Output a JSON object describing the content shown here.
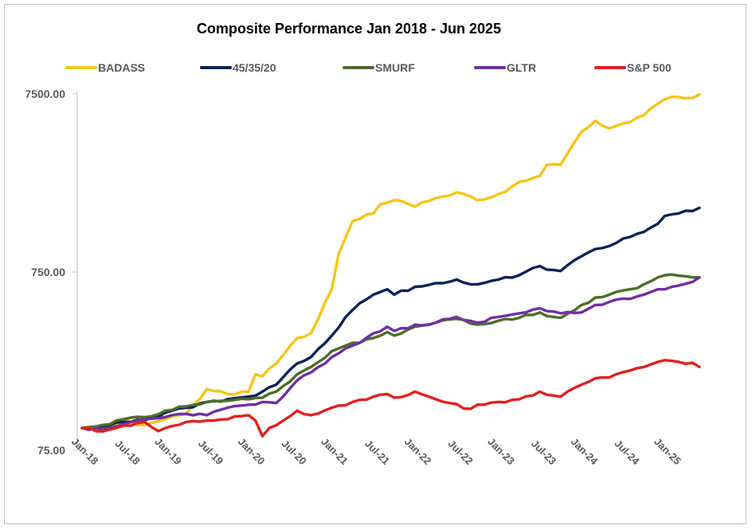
{
  "chart_data": {
    "type": "line",
    "title": "Composite Performance Jan 2018 - Jun 2025",
    "xlabel": "",
    "ylabel": "",
    "y_scale": "log",
    "ylim": [
      75,
      7500
    ],
    "y_ticks": [
      "75.00",
      "750.00",
      "7500.00"
    ],
    "x_ticks": [
      "Jan-18",
      "Jul-18",
      "Jan-19",
      "Jul-19",
      "Jan-20",
      "Jul-20",
      "Jan-21",
      "Jul-21",
      "Jan-22",
      "Jul-22",
      "Jan-23",
      "Jul-23",
      "Jan-24",
      "Jul-24",
      "Jan-25"
    ],
    "grid": false,
    "legend_position": "top",
    "x_step": "month",
    "x_start": "2018-01",
    "x_end": "2025-06",
    "series": [
      {
        "name": "BADASS",
        "color": "#F5C518",
        "points": [
          [
            "2018-01",
            100
          ],
          [
            "2018-04",
            102
          ],
          [
            "2018-07",
            110
          ],
          [
            "2018-10",
            104
          ],
          [
            "2019-01",
            112
          ],
          [
            "2019-04",
            120
          ],
          [
            "2019-07",
            165
          ],
          [
            "2019-10",
            155
          ],
          [
            "2020-01",
            160
          ],
          [
            "2020-02",
            200
          ],
          [
            "2020-03",
            195
          ],
          [
            "2020-05",
            230
          ],
          [
            "2020-08",
            320
          ],
          [
            "2020-10",
            340
          ],
          [
            "2021-01",
            600
          ],
          [
            "2021-02",
            950
          ],
          [
            "2021-04",
            1450
          ],
          [
            "2021-07",
            1600
          ],
          [
            "2021-08",
            1800
          ],
          [
            "2021-10",
            1900
          ],
          [
            "2022-01",
            1750
          ],
          [
            "2022-04",
            1950
          ],
          [
            "2022-07",
            2100
          ],
          [
            "2022-10",
            1900
          ],
          [
            "2023-01",
            2050
          ],
          [
            "2023-04",
            2400
          ],
          [
            "2023-07",
            2600
          ],
          [
            "2023-08",
            3000
          ],
          [
            "2023-10",
            3000
          ],
          [
            "2024-01",
            4600
          ],
          [
            "2024-03",
            5300
          ],
          [
            "2024-05",
            4800
          ],
          [
            "2024-08",
            5200
          ],
          [
            "2024-10",
            5700
          ],
          [
            "2024-12",
            6600
          ],
          [
            "2025-01",
            7000
          ],
          [
            "2025-03",
            7200
          ],
          [
            "2025-05",
            7100
          ],
          [
            "2025-06",
            7450
          ]
        ]
      },
      {
        "name": "45/35/20",
        "color": "#0B2256",
        "points": [
          [
            "2018-01",
            100
          ],
          [
            "2018-04",
            102
          ],
          [
            "2018-07",
            108
          ],
          [
            "2018-10",
            110
          ],
          [
            "2019-01",
            122
          ],
          [
            "2019-04",
            130
          ],
          [
            "2019-07",
            140
          ],
          [
            "2019-10",
            145
          ],
          [
            "2020-01",
            150
          ],
          [
            "2020-03",
            160
          ],
          [
            "2020-05",
            175
          ],
          [
            "2020-08",
            230
          ],
          [
            "2020-10",
            250
          ],
          [
            "2021-01",
            330
          ],
          [
            "2021-03",
            420
          ],
          [
            "2021-05",
            500
          ],
          [
            "2021-07",
            560
          ],
          [
            "2021-09",
            600
          ],
          [
            "2021-10",
            560
          ],
          [
            "2022-01",
            620
          ],
          [
            "2022-04",
            650
          ],
          [
            "2022-07",
            680
          ],
          [
            "2022-10",
            640
          ],
          [
            "2023-01",
            680
          ],
          [
            "2023-04",
            720
          ],
          [
            "2023-07",
            810
          ],
          [
            "2023-09",
            770
          ],
          [
            "2023-10",
            760
          ],
          [
            "2024-01",
            920
          ],
          [
            "2024-03",
            1010
          ],
          [
            "2024-05",
            1050
          ],
          [
            "2024-08",
            1180
          ],
          [
            "2024-10",
            1260
          ],
          [
            "2024-12",
            1400
          ],
          [
            "2025-01",
            1550
          ],
          [
            "2025-03",
            1600
          ],
          [
            "2025-05",
            1650
          ],
          [
            "2025-06",
            1720
          ]
        ]
      },
      {
        "name": "SMURF",
        "color": "#4E6D2A",
        "points": [
          [
            "2018-01",
            100
          ],
          [
            "2018-04",
            104
          ],
          [
            "2018-07",
            112
          ],
          [
            "2018-10",
            115
          ],
          [
            "2019-01",
            125
          ],
          [
            "2019-04",
            132
          ],
          [
            "2019-07",
            140
          ],
          [
            "2019-10",
            142
          ],
          [
            "2020-01",
            145
          ],
          [
            "2020-03",
            148
          ],
          [
            "2020-05",
            160
          ],
          [
            "2020-08",
            200
          ],
          [
            "2020-10",
            220
          ],
          [
            "2021-01",
            270
          ],
          [
            "2021-03",
            290
          ],
          [
            "2021-05",
            300
          ],
          [
            "2021-07",
            320
          ],
          [
            "2021-09",
            345
          ],
          [
            "2021-10",
            330
          ],
          [
            "2022-01",
            370
          ],
          [
            "2022-04",
            390
          ],
          [
            "2022-07",
            410
          ],
          [
            "2022-10",
            380
          ],
          [
            "2023-01",
            400
          ],
          [
            "2023-04",
            415
          ],
          [
            "2023-07",
            445
          ],
          [
            "2023-09",
            420
          ],
          [
            "2023-10",
            415
          ],
          [
            "2024-01",
            490
          ],
          [
            "2024-03",
            540
          ],
          [
            "2024-05",
            560
          ],
          [
            "2024-08",
            600
          ],
          [
            "2024-10",
            640
          ],
          [
            "2024-12",
            700
          ],
          [
            "2025-01",
            720
          ],
          [
            "2025-03",
            715
          ],
          [
            "2025-05",
            700
          ],
          [
            "2025-06",
            700
          ]
        ]
      },
      {
        "name": "GLTR",
        "color": "#7030A0",
        "points": [
          [
            "2018-01",
            100
          ],
          [
            "2018-04",
            98
          ],
          [
            "2018-07",
            105
          ],
          [
            "2018-10",
            112
          ],
          [
            "2019-01",
            115
          ],
          [
            "2019-04",
            120
          ],
          [
            "2019-07",
            118
          ],
          [
            "2019-10",
            130
          ],
          [
            "2020-01",
            135
          ],
          [
            "2020-03",
            140
          ],
          [
            "2020-05",
            138
          ],
          [
            "2020-08",
            185
          ],
          [
            "2020-10",
            205
          ],
          [
            "2021-01",
            250
          ],
          [
            "2021-03",
            280
          ],
          [
            "2021-05",
            300
          ],
          [
            "2021-07",
            340
          ],
          [
            "2021-09",
            370
          ],
          [
            "2021-10",
            350
          ],
          [
            "2022-01",
            380
          ],
          [
            "2022-04",
            390
          ],
          [
            "2022-07",
            420
          ],
          [
            "2022-10",
            390
          ],
          [
            "2023-01",
            420
          ],
          [
            "2023-04",
            440
          ],
          [
            "2023-07",
            470
          ],
          [
            "2023-09",
            450
          ],
          [
            "2023-10",
            440
          ],
          [
            "2024-01",
            445
          ],
          [
            "2024-03",
            490
          ],
          [
            "2024-05",
            510
          ],
          [
            "2024-08",
            530
          ],
          [
            "2024-10",
            560
          ],
          [
            "2024-12",
            600
          ],
          [
            "2025-01",
            600
          ],
          [
            "2025-03",
            630
          ],
          [
            "2025-05",
            660
          ],
          [
            "2025-06",
            700
          ]
        ]
      },
      {
        "name": "S&P 500",
        "color": "#E02020",
        "points": [
          [
            "2018-01",
            100
          ],
          [
            "2018-03",
            96
          ],
          [
            "2018-05",
            98
          ],
          [
            "2018-07",
            103
          ],
          [
            "2018-10",
            108
          ],
          [
            "2018-12",
            96
          ],
          [
            "2019-01",
            100
          ],
          [
            "2019-04",
            108
          ],
          [
            "2019-07",
            110
          ],
          [
            "2019-10",
            112
          ],
          [
            "2020-01",
            118
          ],
          [
            "2020-02",
            110
          ],
          [
            "2020-03",
            90
          ],
          [
            "2020-04",
            100
          ],
          [
            "2020-06",
            110
          ],
          [
            "2020-08",
            125
          ],
          [
            "2020-10",
            118
          ],
          [
            "2021-01",
            130
          ],
          [
            "2021-04",
            140
          ],
          [
            "2021-07",
            150
          ],
          [
            "2021-09",
            155
          ],
          [
            "2021-10",
            148
          ],
          [
            "2022-01",
            160
          ],
          [
            "2022-03",
            150
          ],
          [
            "2022-06",
            138
          ],
          [
            "2022-09",
            128
          ],
          [
            "2022-10",
            135
          ],
          [
            "2023-01",
            140
          ],
          [
            "2023-04",
            145
          ],
          [
            "2023-07",
            160
          ],
          [
            "2023-09",
            152
          ],
          [
            "2023-10",
            150
          ],
          [
            "2024-01",
            175
          ],
          [
            "2024-03",
            190
          ],
          [
            "2024-05",
            192
          ],
          [
            "2024-08",
            210
          ],
          [
            "2024-10",
            220
          ],
          [
            "2024-12",
            235
          ],
          [
            "2025-01",
            240
          ],
          [
            "2025-03",
            235
          ],
          [
            "2025-05",
            232
          ],
          [
            "2025-06",
            220
          ]
        ]
      }
    ]
  }
}
